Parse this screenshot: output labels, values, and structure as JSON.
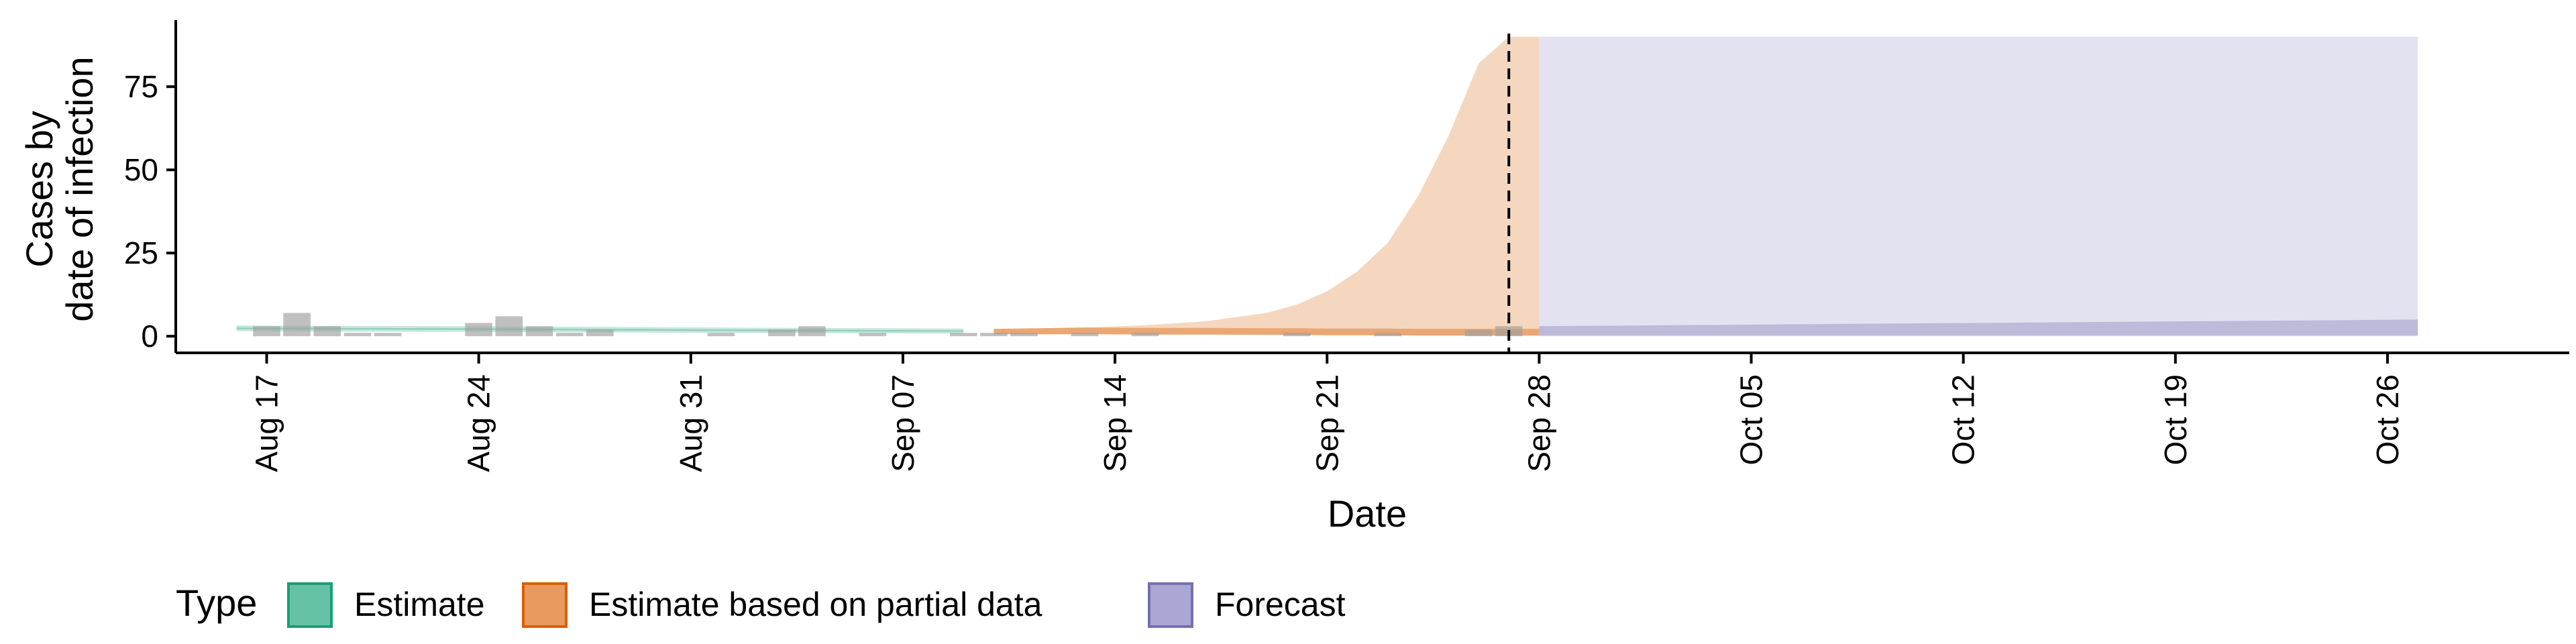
{
  "chart_data": {
    "type": "area",
    "ylabel_lines": [
      "Cases by",
      "date of infection"
    ],
    "xlabel": "Date",
    "ylim": [
      -5,
      95
    ],
    "yticks": [
      0,
      25,
      50,
      75
    ],
    "x_dates": [
      "2020-08-14",
      "2020-11-01"
    ],
    "xticks": [
      {
        "date": "2020-08-17",
        "label": "Aug 17"
      },
      {
        "date": "2020-08-24",
        "label": "Aug 24"
      },
      {
        "date": "2020-08-31",
        "label": "Aug 31"
      },
      {
        "date": "2020-09-07",
        "label": "Sep 07"
      },
      {
        "date": "2020-09-14",
        "label": "Sep 14"
      },
      {
        "date": "2020-09-21",
        "label": "Sep 21"
      },
      {
        "date": "2020-09-28",
        "label": "Sep 28"
      },
      {
        "date": "2020-10-05",
        "label": "Oct 05"
      },
      {
        "date": "2020-10-12",
        "label": "Oct 12"
      },
      {
        "date": "2020-10-19",
        "label": "Oct 19"
      },
      {
        "date": "2020-10-26",
        "label": "Oct 26"
      }
    ],
    "vline_date": "2020-09-27",
    "reported_cases": [
      {
        "date": "2020-08-17",
        "value": 3
      },
      {
        "date": "2020-08-18",
        "value": 7
      },
      {
        "date": "2020-08-19",
        "value": 3
      },
      {
        "date": "2020-08-20",
        "value": 1
      },
      {
        "date": "2020-08-21",
        "value": 1
      },
      {
        "date": "2020-08-24",
        "value": 4
      },
      {
        "date": "2020-08-25",
        "value": 6
      },
      {
        "date": "2020-08-26",
        "value": 3
      },
      {
        "date": "2020-08-27",
        "value": 1
      },
      {
        "date": "2020-08-28",
        "value": 2
      },
      {
        "date": "2020-09-01",
        "value": 1
      },
      {
        "date": "2020-09-03",
        "value": 2
      },
      {
        "date": "2020-09-04",
        "value": 3
      },
      {
        "date": "2020-09-06",
        "value": 1
      },
      {
        "date": "2020-09-09",
        "value": 1
      },
      {
        "date": "2020-09-10",
        "value": 1
      },
      {
        "date": "2020-09-11",
        "value": 1
      },
      {
        "date": "2020-09-13",
        "value": 1
      },
      {
        "date": "2020-09-15",
        "value": 1
      },
      {
        "date": "2020-09-20",
        "value": 1
      },
      {
        "date": "2020-09-23",
        "value": 1
      },
      {
        "date": "2020-09-26",
        "value": 2
      },
      {
        "date": "2020-09-27",
        "value": 3
      }
    ],
    "series": [
      {
        "name": "Estimate",
        "color": "#1b9e77",
        "points": [
          {
            "date": "2020-08-16",
            "low": 1.5,
            "high": 3.2
          },
          {
            "date": "2020-08-24",
            "low": 1.3,
            "high": 3.0
          },
          {
            "date": "2020-09-01",
            "low": 1.0,
            "high": 2.6
          },
          {
            "date": "2020-09-09",
            "low": 0.8,
            "high": 2.3
          }
        ]
      },
      {
        "name": "Estimate based on partial data",
        "color": "#d95f02",
        "points": [
          {
            "date": "2020-09-10",
            "low": 0.6,
            "high": 2.2
          },
          {
            "date": "2020-09-13",
            "low": 0.6,
            "high": 2.6
          },
          {
            "date": "2020-09-15",
            "low": 0.5,
            "high": 3.3
          },
          {
            "date": "2020-09-17",
            "low": 0.5,
            "high": 4.5
          },
          {
            "date": "2020-09-19",
            "low": 0.4,
            "high": 7.0
          },
          {
            "date": "2020-09-20",
            "low": 0.4,
            "high": 9.5
          },
          {
            "date": "2020-09-21",
            "low": 0.3,
            "high": 13.5
          },
          {
            "date": "2020-09-22",
            "low": 0.3,
            "high": 19.5
          },
          {
            "date": "2020-09-23",
            "low": 0.3,
            "high": 28
          },
          {
            "date": "2020-09-24",
            "low": 0.2,
            "high": 42
          },
          {
            "date": "2020-09-25",
            "low": 0.2,
            "high": 60
          },
          {
            "date": "2020-09-26",
            "low": 0.2,
            "high": 82
          },
          {
            "date": "2020-09-27",
            "low": 0.2,
            "high": 90
          },
          {
            "date": "2020-09-28",
            "low": 0.2,
            "high": 90
          }
        ]
      },
      {
        "name": "Forecast",
        "color": "#7570b3",
        "points": [
          {
            "date": "2020-09-28",
            "low": 0.0,
            "high": 90
          },
          {
            "date": "2020-10-27",
            "low": 0.0,
            "high": 90
          }
        ],
        "inner_points": [
          {
            "date": "2020-09-28",
            "low": 0.2,
            "high": 3.0
          },
          {
            "date": "2020-10-27",
            "low": 0.2,
            "high": 5.0
          }
        ]
      }
    ],
    "legend": {
      "title": "Type",
      "position": "bottom-left",
      "items": [
        {
          "label": "Estimate",
          "fill": "#66c2a5",
          "stroke": "#1b9e77"
        },
        {
          "label": "Estimate based on partial data",
          "fill": "#e89a5f",
          "stroke": "#d95f02"
        },
        {
          "label": "Forecast",
          "fill": "#aaa7d4",
          "stroke": "#7570b3"
        }
      ]
    },
    "grid": false
  }
}
